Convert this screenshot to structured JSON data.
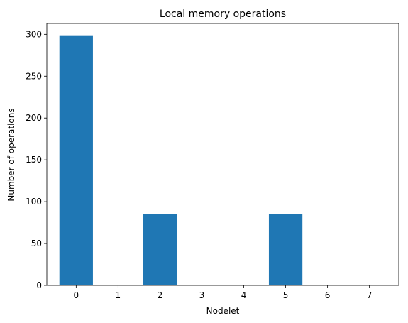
{
  "chart_data": {
    "type": "bar",
    "title": "Local memory operations",
    "xlabel": "Nodelet",
    "ylabel": "Number of operations",
    "categories": [
      "0",
      "1",
      "2",
      "3",
      "4",
      "5",
      "6",
      "7"
    ],
    "values": [
      298,
      0,
      85,
      0,
      0,
      85,
      0,
      0
    ],
    "ylim": [
      0,
      313
    ],
    "yticks": [
      0,
      50,
      100,
      150,
      200,
      250,
      300
    ],
    "grid": false,
    "legend": "none",
    "bar_color": "#1f77b4"
  }
}
